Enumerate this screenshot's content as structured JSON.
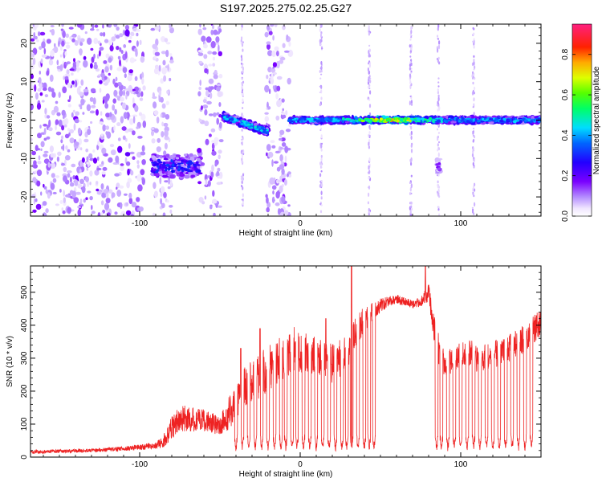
{
  "figure_title": "S197.2025.275.02.25.G27",
  "chart_data": [
    {
      "type": "heatmap",
      "title": "S197.2025.275.02.25.G27",
      "xlabel": "Height of straight line (km)",
      "ylabel": "Frequency (Hz)",
      "xlim": [
        -168,
        150
      ],
      "ylim": [
        -25,
        25
      ],
      "x_ticks": [
        -100,
        0,
        100
      ],
      "x_tick_labels": [
        "-100",
        "0",
        "100"
      ],
      "y_ticks": [
        -20,
        -10,
        0,
        10,
        20
      ],
      "y_tick_labels": [
        "-20",
        "-10",
        "0",
        "10",
        "20"
      ],
      "colorbar": {
        "label": "Normalized spectral amplitude",
        "range": [
          0.0,
          0.95
        ],
        "ticks": [
          0.0,
          0.2,
          0.4,
          0.6,
          0.8
        ],
        "tick_labels": [
          "0.0",
          "0.2",
          "0.4",
          "0.6",
          "0.8"
        ],
        "colormap": "rainbow (white → violet → blue → cyan → green → yellow → red → magenta)"
      },
      "noise_regions": [
        {
          "x_range": [
            -168,
            -97
          ],
          "level": 0.1
        },
        {
          "x_range": [
            -92,
            -80
          ],
          "level": 0.06
        },
        {
          "x_range": [
            -63,
            -49
          ],
          "level": 0.1
        },
        {
          "x_range": [
            -21,
            -6
          ],
          "level": 0.09
        }
      ],
      "features": [
        {
          "x_range": [
            -92,
            -62
          ],
          "freq_center": -12,
          "freq_spread": 3,
          "peak_amplitude": 0.35
        },
        {
          "x_range": [
            -48,
            -20
          ],
          "freq_start": 1,
          "freq_end": -3,
          "peak_amplitude": 0.5
        },
        {
          "x_range": [
            -7,
            150
          ],
          "freq_center": 0,
          "freq_spread": 0.8,
          "peak_amplitude": 0.85,
          "peak_x": 55
        },
        {
          "x_range": [
            85,
            87
          ],
          "freq_center": -12,
          "freq_spread": 2,
          "peak_amplitude": 0.18
        }
      ],
      "vertical_streaks_x": [
        -36,
        13,
        43,
        69,
        86,
        108
      ]
    },
    {
      "type": "line",
      "title": "",
      "xlabel": "Height of straight line (km)",
      "ylabel": "SNR (10 * v/v)",
      "xlim": [
        -168,
        150
      ],
      "ylim": [
        0,
        580
      ],
      "x_ticks": [
        -100,
        0,
        100
      ],
      "x_tick_labels": [
        "-100",
        "0",
        "100"
      ],
      "y_ticks": [
        0,
        100,
        200,
        300,
        400,
        500
      ],
      "y_tick_labels": [
        "0",
        "100",
        "200",
        "300",
        "400",
        "500"
      ],
      "line_color": "#ee2222",
      "series": [
        {
          "name": "SNR",
          "x": [
            -168,
            -150,
            -130,
            -110,
            -100,
            -90,
            -85,
            -80,
            -75,
            -70,
            -60,
            -50,
            -45,
            -40,
            -35,
            -30,
            -25,
            -20,
            -15,
            -10,
            -5,
            0,
            10,
            20,
            30,
            35,
            40,
            45,
            50,
            55,
            60,
            65,
            70,
            75,
            80,
            85,
            90,
            95,
            100,
            105,
            110,
            120,
            130,
            140,
            150
          ],
          "y": [
            15,
            18,
            20,
            25,
            30,
            35,
            50,
            90,
            120,
            115,
            110,
            95,
            130,
            160,
            210,
            230,
            250,
            270,
            290,
            300,
            330,
            320,
            300,
            280,
            320,
            380,
            420,
            440,
            460,
            470,
            480,
            470,
            465,
            470,
            500,
            350,
            280,
            300,
            310,
            320,
            300,
            310,
            330,
            360,
            410
          ],
          "dropout_x": [
            -40,
            -36,
            -32,
            -28,
            -24,
            -20,
            -16,
            -12,
            -9,
            -5,
            -2,
            2,
            6,
            10,
            14,
            18,
            22,
            26,
            29,
            32,
            36,
            40,
            43,
            46,
            85,
            88,
            92,
            96,
            100,
            104,
            108,
            112,
            116,
            120,
            124,
            128,
            132,
            136,
            140,
            144
          ],
          "noise_amplitude": [
            8,
            8,
            8,
            10,
            12,
            15,
            30,
            50,
            60,
            55,
            50,
            40,
            70,
            70,
            90,
            90,
            100,
            100,
            100,
            100,
            100,
            90,
            90,
            90,
            90,
            80,
            70,
            40,
            30,
            25,
            20,
            20,
            20,
            20,
            40,
            80,
            60,
            60,
            60,
            60,
            60,
            60,
            60,
            60,
            60
          ],
          "spike_points": [
            [
              -37,
              330
            ],
            [
              -25,
              390
            ],
            [
              -3,
              350
            ],
            [
              16,
              420
            ],
            [
              32,
              580
            ],
            [
              78,
              590
            ]
          ]
        }
      ]
    }
  ]
}
